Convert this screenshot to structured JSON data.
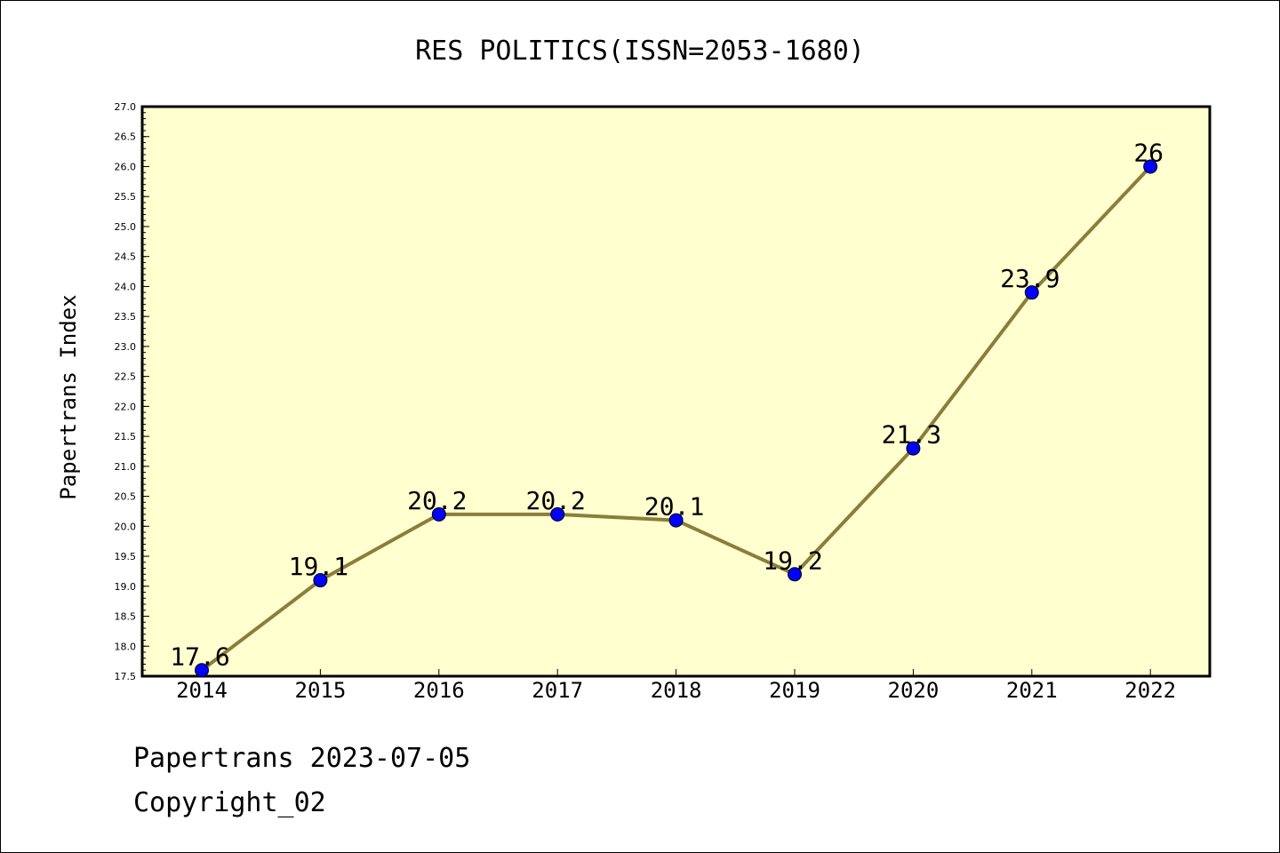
{
  "chart_data": {
    "type": "line",
    "title": "RES POLITICS(ISSN=2053-1680)",
    "xlabel": "",
    "ylabel": "Papertrans Index",
    "categories": [
      "2014",
      "2015",
      "2016",
      "2017",
      "2018",
      "2019",
      "2020",
      "2021",
      "2022"
    ],
    "values": [
      17.6,
      19.1,
      20.2,
      20.2,
      20.1,
      19.2,
      21.3,
      23.9,
      26
    ],
    "value_labels": [
      "17.6",
      "19.1",
      "20.2",
      "20.2",
      "20.1",
      "19.2",
      "21.3",
      "23.9",
      "26"
    ],
    "ylim": [
      17.5,
      27.0
    ],
    "yticks": [
      "17.5",
      "18.0",
      "18.5",
      "19.0",
      "19.5",
      "20.0",
      "20.5",
      "21.0",
      "21.5",
      "22.0",
      "22.5",
      "23.0",
      "23.5",
      "24.0",
      "24.5",
      "25.0",
      "25.5",
      "26.0",
      "26.5",
      "27.0"
    ],
    "grid": false,
    "legend": "none",
    "colors": {
      "plot_background": "#ffffd0",
      "line": "#8b7d3a",
      "marker": "#0000ff"
    }
  },
  "footer": {
    "date_line": "Papertrans 2023-07-05",
    "copyright_line": "Copyright_02"
  }
}
